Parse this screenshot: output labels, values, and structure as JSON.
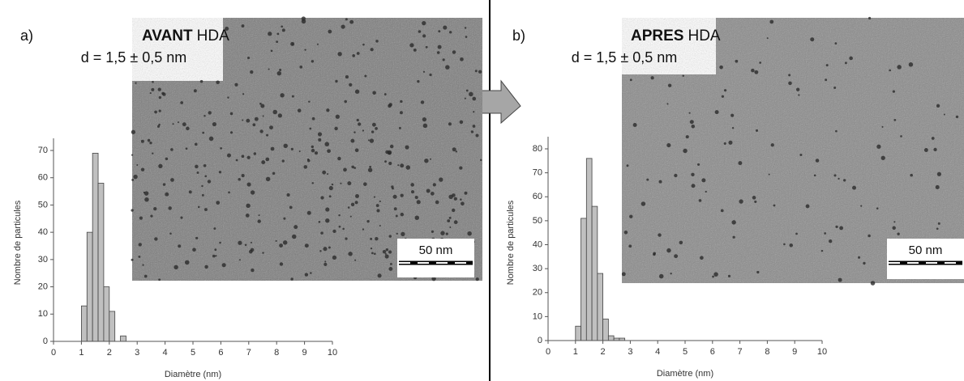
{
  "chart_data": [
    {
      "type": "histogram",
      "panel_label": "a)",
      "title_bold": "AVANT",
      "title_rest": "HDA",
      "subtitle": "d = 1,5 ± 0,5 nm",
      "scale_bar": "50 nm",
      "x_label": "Diamètre (nm)",
      "y_label": "Nombre de particules",
      "bins": [
        1.0,
        1.2,
        1.4,
        1.6,
        1.8,
        2.0,
        2.2,
        2.4,
        2.6
      ],
      "values": [
        13,
        40,
        69,
        58,
        20,
        11,
        0,
        2
      ],
      "color": "#c0c0c0",
      "xlim": [
        0,
        10
      ],
      "ylim": [
        0,
        70
      ],
      "xticks": [
        0,
        1,
        2,
        3,
        4,
        5,
        6,
        7,
        8,
        9,
        10
      ],
      "yticks": [
        0,
        10,
        20,
        30,
        40,
        50,
        60,
        70
      ]
    },
    {
      "type": "histogram",
      "panel_label": "b)",
      "title_bold": "APRES",
      "title_rest": "HDA",
      "subtitle": "d = 1,5 ± 0,5 nm",
      "scale_bar": "50 nm",
      "x_label": "Diamètre (nm)",
      "y_label": "Nombre de particules",
      "bins": [
        1.0,
        1.2,
        1.4,
        1.6,
        1.8,
        2.0,
        2.2,
        2.4,
        2.6,
        2.8
      ],
      "values": [
        6,
        51,
        76,
        56,
        28,
        9,
        2,
        1,
        1
      ],
      "color": "#c0c0c0",
      "xlim": [
        0,
        10
      ],
      "ylim": [
        0,
        80
      ],
      "xticks": [
        0,
        1,
        2,
        3,
        4,
        5,
        6,
        7,
        8,
        9,
        10
      ],
      "yticks": [
        0,
        10,
        20,
        30,
        40,
        50,
        60,
        70,
        80
      ]
    }
  ]
}
